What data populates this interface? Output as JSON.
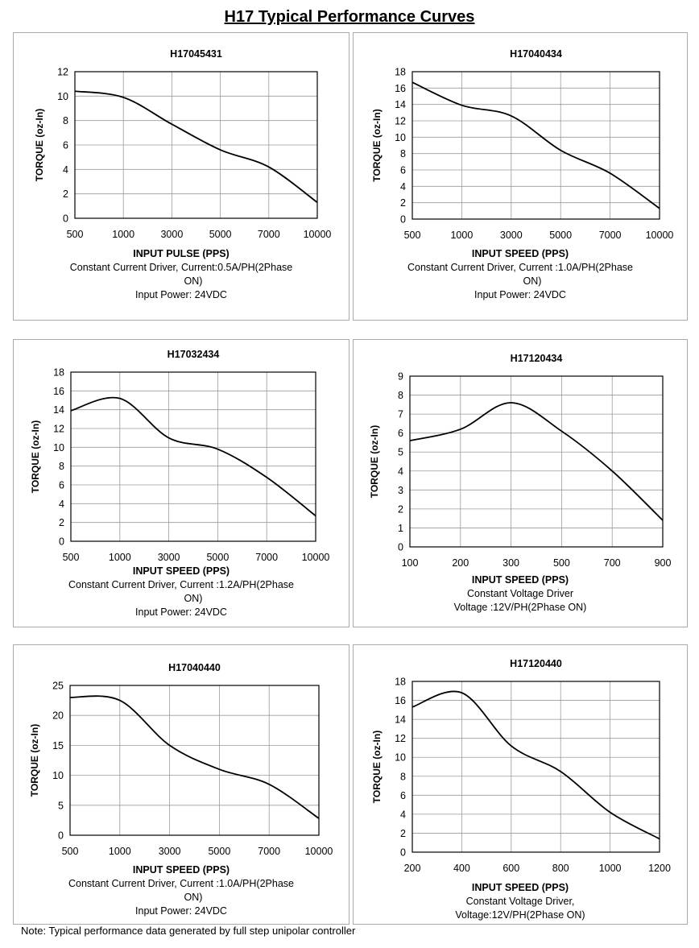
{
  "page": {
    "title": "H17 Typical Performance Curves",
    "note": "Note: Typical performance data generated by full step unipolar controller"
  },
  "panels": [
    {
      "caption": [
        "Constant Current Driver, Current:0.5A/PH(2Phase",
        "ON)",
        "Input Power: 24VDC"
      ]
    },
    {
      "caption": [
        "Constant Current Driver, Current :1.0A/PH(2Phase",
        "ON)",
        "Input Power: 24VDC"
      ]
    },
    {
      "caption": [
        "Constant Current Driver, Current :1.2A/PH(2Phase",
        "ON)",
        "Input Power: 24VDC"
      ]
    },
    {
      "caption": [
        "Constant Voltage  Driver",
        "Voltage :12V/PH(2Phase ON)"
      ]
    },
    {
      "caption": [
        "Constant Current Driver, Current :1.0A/PH(2Phase",
        "ON)",
        "Input Power: 24VDC"
      ]
    },
    {
      "caption": [
        "Constant Voltage Driver,",
        "Voltage:12V/PH(2Phase ON)"
      ]
    }
  ],
  "chart_data": [
    {
      "type": "line",
      "title": "H17045431",
      "xlabel": "INPUT PULSE (PPS)",
      "ylabel": "TORQUE (oz-In)",
      "categories": [
        "500",
        "1000",
        "3000",
        "5000",
        "7000",
        "10000"
      ],
      "values": [
        10.4,
        9.9,
        7.7,
        5.6,
        4.2,
        1.3
      ],
      "ylim": [
        0,
        12
      ],
      "yticks": [
        0,
        2,
        4,
        6,
        8,
        10,
        12
      ],
      "grid": true
    },
    {
      "type": "line",
      "title": "H17040434",
      "xlabel": "INPUT SPEED (PPS)",
      "ylabel": "TORQUE (oz-In)",
      "categories": [
        "500",
        "1000",
        "3000",
        "5000",
        "7000",
        "10000"
      ],
      "values": [
        16.7,
        13.9,
        12.6,
        8.4,
        5.6,
        1.3
      ],
      "ylim": [
        0,
        18
      ],
      "yticks": [
        0,
        2,
        4,
        6,
        8,
        10,
        12,
        14,
        16,
        18
      ],
      "grid": true
    },
    {
      "type": "line",
      "title": "H17032434",
      "xlabel": "INPUT SPEED (PPS)",
      "ylabel": "TORQUE (oz-In)",
      "categories": [
        "500",
        "1000",
        "3000",
        "5000",
        "7000",
        "10000"
      ],
      "values": [
        13.9,
        15.2,
        11.0,
        9.8,
        6.8,
        2.7
      ],
      "ylim": [
        0,
        18
      ],
      "yticks": [
        0,
        2,
        4,
        6,
        8,
        10,
        12,
        14,
        16,
        18
      ],
      "grid": true
    },
    {
      "type": "line",
      "title": "H17120434",
      "xlabel": "INPUT SPEED (PPS)",
      "ylabel": "TORQUE (oz-In)",
      "categories": [
        "100",
        "200",
        "300",
        "500",
        "700",
        "900"
      ],
      "values": [
        5.6,
        6.2,
        7.6,
        6.1,
        4.0,
        1.4
      ],
      "ylim": [
        0,
        9
      ],
      "yticks": [
        0,
        1,
        2,
        3,
        4,
        5,
        6,
        7,
        8,
        9
      ],
      "grid": true
    },
    {
      "type": "line",
      "title": "H17040440",
      "xlabel": "INPUT SPEED (PPS)",
      "ylabel": "TORQUE (oz-In)",
      "categories": [
        "500",
        "1000",
        "3000",
        "5000",
        "7000",
        "10000"
      ],
      "values": [
        23.0,
        22.5,
        15.0,
        11.0,
        8.5,
        2.8
      ],
      "ylim": [
        0,
        25
      ],
      "yticks": [
        0,
        5,
        10,
        15,
        20,
        25
      ],
      "grid": true
    },
    {
      "type": "line",
      "title": "H17120440",
      "xlabel": "INPUT SPEED (PPS)",
      "ylabel": "TORQUE (oz-In)",
      "categories": [
        "200",
        "400",
        "600",
        "800",
        "1000",
        "1200"
      ],
      "values": [
        15.3,
        16.8,
        11.2,
        8.5,
        4.2,
        1.4
      ],
      "ylim": [
        0,
        18
      ],
      "yticks": [
        0,
        2,
        4,
        6,
        8,
        10,
        12,
        14,
        16,
        18
      ],
      "grid": true
    }
  ]
}
